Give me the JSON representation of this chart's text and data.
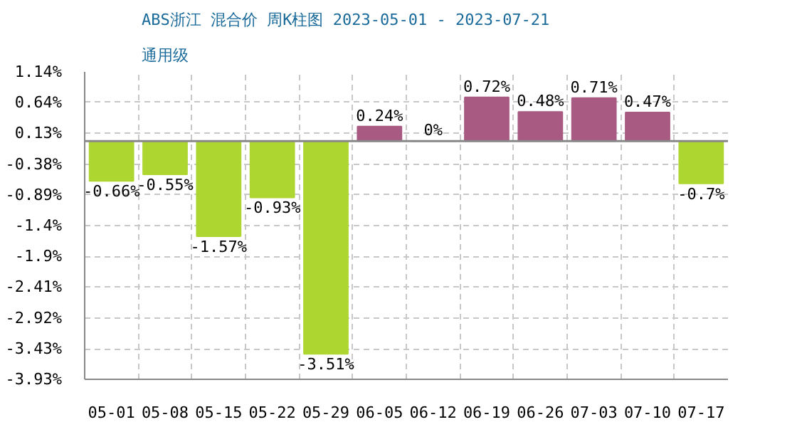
{
  "chart_data": {
    "type": "bar",
    "title": "ABS浙江 混合价 周K柱图 2023-05-01 - 2023-07-21",
    "subtitle": "通用级",
    "categories": [
      "05-01",
      "05-08",
      "05-15",
      "05-22",
      "05-29",
      "06-05",
      "06-12",
      "06-19",
      "06-26",
      "07-03",
      "07-10",
      "07-17"
    ],
    "values": [
      -0.66,
      -0.55,
      -1.57,
      -0.93,
      -3.51,
      0.24,
      0,
      0.72,
      0.48,
      0.71,
      0.47,
      -0.7
    ],
    "value_labels": [
      "-0.66%",
      "-0.55%",
      "-1.57%",
      "-0.93%",
      "-3.51%",
      "0.24%",
      "0%",
      "0.72%",
      "0.48%",
      "0.71%",
      "0.47%",
      "-0.7%"
    ],
    "colors": [
      "#add631",
      "#add631",
      "#add631",
      "#add631",
      "#add631",
      "#a95a82",
      "#a95a82",
      "#a95a82",
      "#a95a82",
      "#a95a82",
      "#a95a82",
      "#add631"
    ],
    "ylim": [
      -3.93,
      1.14
    ],
    "yticks": [
      {
        "value": 1.14,
        "label": "1.14%"
      },
      {
        "value": 0.64,
        "label": "0.64%"
      },
      {
        "value": 0.13,
        "label": "0.13%"
      },
      {
        "value": -0.38,
        "label": "-0.38%"
      },
      {
        "value": -0.89,
        "label": "-0.89%"
      },
      {
        "value": -1.4,
        "label": "-1.4%"
      },
      {
        "value": -1.9,
        "label": "-1.9%"
      },
      {
        "value": -2.41,
        "label": "-2.41%"
      },
      {
        "value": -2.92,
        "label": "-2.92%"
      },
      {
        "value": -3.43,
        "label": "-3.43%"
      },
      {
        "value": -3.93,
        "label": "-3.93%"
      }
    ],
    "ref_lines": [
      {
        "axis": "y",
        "value": 0,
        "color": "#888888"
      }
    ],
    "grid": true
  }
}
